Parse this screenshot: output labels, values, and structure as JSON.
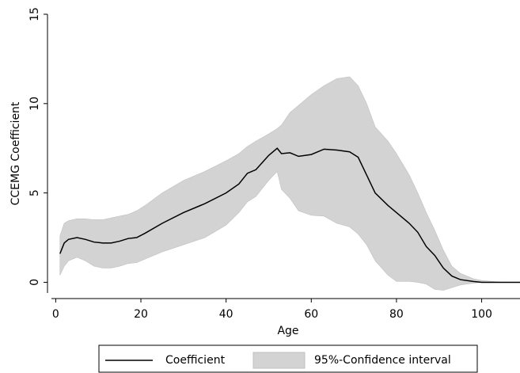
{
  "chart_data": {
    "type": "line",
    "x_label": "Age",
    "y_label": "CCEMG Coefficient",
    "x": [
      1,
      2,
      3,
      5,
      7,
      9,
      11,
      13,
      15,
      17,
      19,
      21,
      25,
      30,
      35,
      40,
      43,
      45,
      47,
      50,
      52,
      53,
      55,
      57,
      60,
      63,
      66,
      69,
      71,
      73,
      75,
      78,
      80,
      83,
      85,
      87,
      89,
      91,
      93,
      95,
      98,
      100,
      105,
      109
    ],
    "series": [
      {
        "name": "Coefficient",
        "color": "#000000",
        "values": [
          1.6,
          2.2,
          2.4,
          2.5,
          2.4,
          2.25,
          2.2,
          2.2,
          2.3,
          2.45,
          2.5,
          2.75,
          3.3,
          3.9,
          4.4,
          5.0,
          5.5,
          6.1,
          6.3,
          7.1,
          7.5,
          7.2,
          7.25,
          7.05,
          7.15,
          7.45,
          7.4,
          7.3,
          7.0,
          6.0,
          5.0,
          4.3,
          3.9,
          3.3,
          2.8,
          2.0,
          1.5,
          0.8,
          0.35,
          0.15,
          0.05,
          0,
          0,
          0
        ]
      },
      {
        "name": "95%-Confidence interval",
        "color": "#d3d3d3",
        "upper": [
          2.6,
          3.3,
          3.45,
          3.55,
          3.55,
          3.5,
          3.5,
          3.6,
          3.7,
          3.8,
          4.0,
          4.3,
          5.0,
          5.7,
          6.2,
          6.8,
          7.2,
          7.6,
          7.9,
          8.3,
          8.6,
          8.8,
          9.5,
          9.9,
          10.5,
          11.0,
          11.4,
          11.5,
          11.0,
          10.0,
          8.7,
          7.9,
          7.2,
          6.0,
          5.0,
          3.9,
          2.9,
          1.8,
          0.9,
          0.5,
          0.2,
          0.1,
          0,
          0
        ],
        "lower": [
          0.4,
          0.9,
          1.2,
          1.4,
          1.2,
          0.9,
          0.8,
          0.8,
          0.9,
          1.05,
          1.1,
          1.3,
          1.7,
          2.1,
          2.5,
          3.2,
          3.9,
          4.5,
          4.8,
          5.7,
          6.2,
          5.2,
          4.7,
          4.0,
          3.75,
          3.7,
          3.3,
          3.1,
          2.7,
          2.1,
          1.2,
          0.4,
          0.05,
          0.05,
          0,
          -0.1,
          -0.4,
          -0.45,
          -0.3,
          -0.15,
          -0.05,
          0,
          0,
          0
        ]
      }
    ],
    "xlim": [
      -1,
      109
    ],
    "ylim": [
      -0.6,
      15
    ],
    "xticks": [
      0,
      20,
      40,
      60,
      80,
      100
    ],
    "yticks": [
      0,
      5,
      10,
      15
    ]
  }
}
